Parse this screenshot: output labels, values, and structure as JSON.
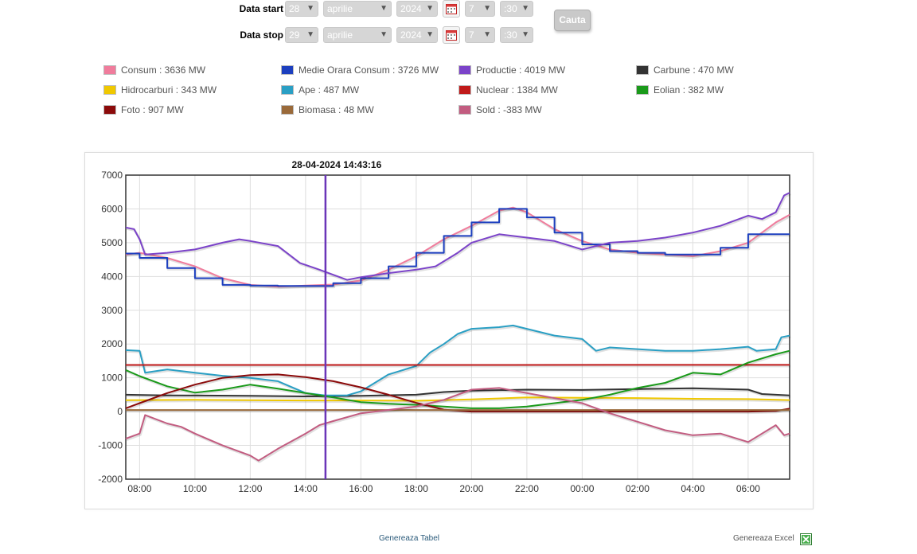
{
  "form": {
    "start_label": "Data start",
    "stop_label": "Data stop",
    "start": {
      "day": "28",
      "month": "aprilie",
      "year": "2024",
      "hour": "7",
      "minute": ":30"
    },
    "stop": {
      "day": "29",
      "month": "aprilie",
      "year": "2024",
      "hour": "7",
      "minute": ":30"
    },
    "search_label": "Cauta"
  },
  "legend": [
    {
      "label": "Consum : 3636 MW",
      "color": "#f07c9c"
    },
    {
      "label": "Medie Orara Consum : 3726 MW",
      "color": "#1c3fbf"
    },
    {
      "label": "Productie : 4019 MW",
      "color": "#7b43c9"
    },
    {
      "label": "Carbune : 470 MW",
      "color": "#333333"
    },
    {
      "label": "Hidrocarburi : 343 MW",
      "color": "#f0c800"
    },
    {
      "label": "Ape : 487 MW",
      "color": "#2a9fc4"
    },
    {
      "label": "Nuclear : 1384 MW",
      "color": "#c01a1a"
    },
    {
      "label": "Eolian : 382 MW",
      "color": "#1a9a1a"
    },
    {
      "label": "Foto : 907 MW",
      "color": "#8b0a0a"
    },
    {
      "label": "Biomasa : 48 MW",
      "color": "#9a6a3a"
    },
    {
      "label": "Sold : -383 MW",
      "color": "#c25c80"
    }
  ],
  "chart_data": {
    "type": "line",
    "cursor_label": "28-04-2024 14:43:16",
    "cursor_x": 14.72,
    "xlim": [
      7.5,
      31.5
    ],
    "ylim": [
      -2000,
      7000
    ],
    "x_ticks": [
      8,
      10,
      12,
      14,
      16,
      18,
      20,
      22,
      24,
      26,
      28,
      30
    ],
    "x_tick_labels": [
      "08:00",
      "10:00",
      "12:00",
      "14:00",
      "16:00",
      "18:00",
      "20:00",
      "22:00",
      "00:00",
      "02:00",
      "04:00",
      "06:00"
    ],
    "y_ticks": [
      -2000,
      -1000,
      0,
      1000,
      2000,
      3000,
      4000,
      5000,
      6000,
      7000
    ],
    "y_tick_labels": [
      "-2000",
      "-1000",
      "0",
      "1000",
      "2000",
      "3000",
      "4000",
      "5000",
      "6000",
      "7000"
    ],
    "grid": true,
    "series": [
      {
        "name": "Consum",
        "color": "#f07c9c",
        "step": false,
        "points": [
          [
            7.5,
            4650
          ],
          [
            8,
            4700
          ],
          [
            9,
            4550
          ],
          [
            10,
            4300
          ],
          [
            11,
            3950
          ],
          [
            12,
            3750
          ],
          [
            13,
            3700
          ],
          [
            14,
            3730
          ],
          [
            15,
            3760
          ],
          [
            16,
            3880
          ],
          [
            17,
            4200
          ],
          [
            18,
            4600
          ],
          [
            19,
            5100
          ],
          [
            20,
            5500
          ],
          [
            21,
            5950
          ],
          [
            21.5,
            6040
          ],
          [
            22,
            5900
          ],
          [
            23,
            5400
          ],
          [
            24,
            5050
          ],
          [
            25,
            4800
          ],
          [
            26,
            4700
          ],
          [
            27,
            4650
          ],
          [
            28,
            4600
          ],
          [
            29,
            4750
          ],
          [
            30,
            5000
          ],
          [
            31,
            5600
          ],
          [
            31.5,
            5830
          ]
        ]
      },
      {
        "name": "Medie Orara Consum",
        "color": "#1c3fbf",
        "step": true,
        "points": [
          [
            7.5,
            4680
          ],
          [
            8,
            4550
          ],
          [
            9,
            4250
          ],
          [
            10,
            3950
          ],
          [
            11,
            3750
          ],
          [
            12,
            3730
          ],
          [
            13,
            3720
          ],
          [
            14,
            3720
          ],
          [
            15,
            3800
          ],
          [
            16,
            3950
          ],
          [
            17,
            4300
          ],
          [
            18,
            4700
          ],
          [
            19,
            5200
          ],
          [
            20,
            5600
          ],
          [
            21,
            6000
          ],
          [
            22,
            5750
          ],
          [
            23,
            5300
          ],
          [
            24,
            4950
          ],
          [
            25,
            4750
          ],
          [
            26,
            4700
          ],
          [
            27,
            4650
          ],
          [
            28,
            4650
          ],
          [
            29,
            4850
          ],
          [
            30,
            5250
          ],
          [
            31.5,
            5250
          ]
        ]
      },
      {
        "name": "Productie",
        "color": "#7b43c9",
        "step": false,
        "points": [
          [
            7.5,
            5450
          ],
          [
            7.8,
            5400
          ],
          [
            8,
            5100
          ],
          [
            8.2,
            4650
          ],
          [
            9,
            4700
          ],
          [
            10,
            4800
          ],
          [
            11,
            5000
          ],
          [
            11.6,
            5100
          ],
          [
            12,
            5050
          ],
          [
            13,
            4900
          ],
          [
            13.8,
            4400
          ],
          [
            14.5,
            4200
          ],
          [
            15,
            4050
          ],
          [
            15.5,
            3900
          ],
          [
            16,
            3980
          ],
          [
            17,
            4100
          ],
          [
            18,
            4200
          ],
          [
            18.7,
            4300
          ],
          [
            19.5,
            4700
          ],
          [
            20,
            5000
          ],
          [
            21,
            5250
          ],
          [
            22,
            5150
          ],
          [
            23,
            5050
          ],
          [
            24,
            4800
          ],
          [
            25,
            5000
          ],
          [
            26,
            5050
          ],
          [
            27,
            5150
          ],
          [
            28,
            5300
          ],
          [
            29,
            5500
          ],
          [
            30,
            5800
          ],
          [
            30.5,
            5700
          ],
          [
            31,
            5900
          ],
          [
            31.3,
            6400
          ],
          [
            31.5,
            6480
          ]
        ]
      },
      {
        "name": "Carbune",
        "color": "#333333",
        "step": false,
        "points": [
          [
            7.5,
            500
          ],
          [
            9,
            480
          ],
          [
            12,
            470
          ],
          [
            14,
            450
          ],
          [
            16,
            470
          ],
          [
            18,
            500
          ],
          [
            19,
            580
          ],
          [
            20,
            620
          ],
          [
            22,
            650
          ],
          [
            24,
            640
          ],
          [
            26,
            670
          ],
          [
            28,
            690
          ],
          [
            30,
            650
          ],
          [
            30.5,
            520
          ],
          [
            31.5,
            480
          ]
        ]
      },
      {
        "name": "Hidrocarburi",
        "color": "#f0c800",
        "step": false,
        "points": [
          [
            7.5,
            340
          ],
          [
            10,
            350
          ],
          [
            12,
            340
          ],
          [
            14,
            330
          ],
          [
            16,
            330
          ],
          [
            18,
            320
          ],
          [
            20,
            360
          ],
          [
            22,
            420
          ],
          [
            24,
            410
          ],
          [
            26,
            400
          ],
          [
            28,
            380
          ],
          [
            30,
            370
          ],
          [
            31.5,
            343
          ]
        ]
      },
      {
        "name": "Ape",
        "color": "#2a9fc4",
        "step": false,
        "points": [
          [
            7.5,
            1820
          ],
          [
            8,
            1800
          ],
          [
            8.2,
            1150
          ],
          [
            9,
            1250
          ],
          [
            10,
            1150
          ],
          [
            11,
            1060
          ],
          [
            12,
            1000
          ],
          [
            13,
            900
          ],
          [
            14,
            550
          ],
          [
            14.7,
            480
          ],
          [
            15.5,
            480
          ],
          [
            16,
            600
          ],
          [
            16.5,
            850
          ],
          [
            17,
            1100
          ],
          [
            18,
            1350
          ],
          [
            18.5,
            1750
          ],
          [
            19,
            2000
          ],
          [
            19.5,
            2300
          ],
          [
            20,
            2450
          ],
          [
            21,
            2500
          ],
          [
            21.5,
            2550
          ],
          [
            22,
            2450
          ],
          [
            23,
            2250
          ],
          [
            24,
            2150
          ],
          [
            24.5,
            1800
          ],
          [
            25,
            1900
          ],
          [
            26,
            1850
          ],
          [
            27,
            1800
          ],
          [
            28,
            1800
          ],
          [
            29,
            1850
          ],
          [
            30,
            1920
          ],
          [
            30.3,
            1800
          ],
          [
            31,
            1850
          ],
          [
            31.2,
            2200
          ],
          [
            31.5,
            2250
          ]
        ]
      },
      {
        "name": "Nuclear",
        "color": "#c01a1a",
        "step": false,
        "points": [
          [
            7.5,
            1380
          ],
          [
            31.5,
            1384
          ]
        ]
      },
      {
        "name": "Eolian",
        "color": "#1a9a1a",
        "step": false,
        "points": [
          [
            7.5,
            1230
          ],
          [
            8,
            1050
          ],
          [
            9,
            750
          ],
          [
            10,
            560
          ],
          [
            11,
            650
          ],
          [
            12,
            800
          ],
          [
            13,
            680
          ],
          [
            14,
            550
          ],
          [
            15,
            420
          ],
          [
            16,
            280
          ],
          [
            17,
            230
          ],
          [
            18,
            200
          ],
          [
            19,
            150
          ],
          [
            20,
            100
          ],
          [
            21,
            100
          ],
          [
            22,
            150
          ],
          [
            23,
            250
          ],
          [
            24,
            350
          ],
          [
            25,
            500
          ],
          [
            26,
            700
          ],
          [
            27,
            850
          ],
          [
            28,
            1150
          ],
          [
            29,
            1100
          ],
          [
            30,
            1450
          ],
          [
            31,
            1700
          ],
          [
            31.5,
            1800
          ]
        ]
      },
      {
        "name": "Foto",
        "color": "#8b0a0a",
        "step": false,
        "points": [
          [
            7.5,
            100
          ],
          [
            8,
            250
          ],
          [
            9,
            550
          ],
          [
            10,
            800
          ],
          [
            11,
            1000
          ],
          [
            12,
            1080
          ],
          [
            13,
            1100
          ],
          [
            14,
            1020
          ],
          [
            15,
            900
          ],
          [
            16,
            720
          ],
          [
            17,
            500
          ],
          [
            18,
            260
          ],
          [
            19,
            60
          ],
          [
            20,
            0
          ],
          [
            22,
            0
          ],
          [
            26,
            0
          ],
          [
            30,
            0
          ],
          [
            31,
            20
          ],
          [
            31.5,
            90
          ]
        ]
      },
      {
        "name": "Biomasa",
        "color": "#9a6a3a",
        "step": false,
        "points": [
          [
            7.5,
            48
          ],
          [
            31.5,
            48
          ]
        ]
      },
      {
        "name": "Sold",
        "color": "#c25c80",
        "step": false,
        "points": [
          [
            7.5,
            -800
          ],
          [
            8,
            -650
          ],
          [
            8.2,
            -100
          ],
          [
            9,
            -350
          ],
          [
            9.5,
            -450
          ],
          [
            10,
            -650
          ],
          [
            11,
            -1000
          ],
          [
            12,
            -1300
          ],
          [
            12.3,
            -1450
          ],
          [
            13,
            -1100
          ],
          [
            14,
            -650
          ],
          [
            14.5,
            -400
          ],
          [
            15,
            -280
          ],
          [
            16,
            -50
          ],
          [
            17,
            50
          ],
          [
            18,
            150
          ],
          [
            18.5,
            250
          ],
          [
            19,
            350
          ],
          [
            20,
            650
          ],
          [
            21,
            700
          ],
          [
            22,
            550
          ],
          [
            23,
            400
          ],
          [
            24,
            250
          ],
          [
            25,
            -50
          ],
          [
            26,
            -300
          ],
          [
            27,
            -550
          ],
          [
            28,
            -700
          ],
          [
            29,
            -650
          ],
          [
            30,
            -900
          ],
          [
            30.5,
            -650
          ],
          [
            31,
            -400
          ],
          [
            31.3,
            -700
          ],
          [
            31.5,
            -650
          ]
        ]
      }
    ]
  },
  "footer": {
    "table_link": "Genereaza Tabel",
    "excel_link": "Genereaza Excel"
  }
}
